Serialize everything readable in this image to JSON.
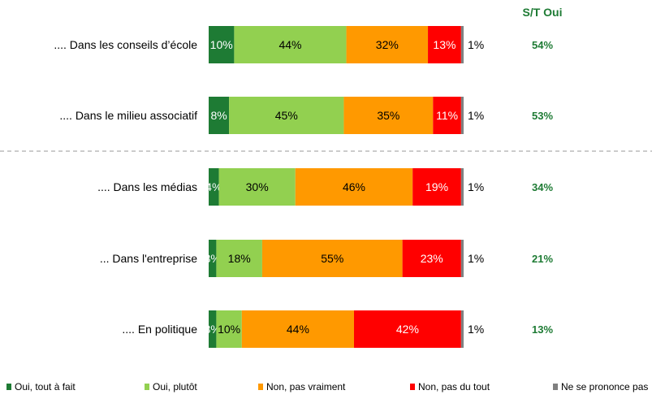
{
  "chart_data": {
    "type": "bar",
    "orientation": "horizontal-stacked-100",
    "st_title": "S/T Oui",
    "categories": [
      ".... Dans les conseils d’école",
      ".... Dans le milieu associatif",
      ".... Dans les médias",
      "... Dans l'entreprise",
      ".... En politique"
    ],
    "series": [
      {
        "name": "Oui, tout à fait",
        "color": "#1e7b34",
        "text_color": "#ffffff",
        "values": [
          10,
          8,
          4,
          3,
          3
        ]
      },
      {
        "name": "Oui, plutôt",
        "color": "#92d050",
        "text_color": "#000000",
        "values": [
          44,
          45,
          30,
          18,
          10
        ]
      },
      {
        "name": "Non, pas vraiment",
        "color": "#ff9900",
        "text_color": "#000000",
        "values": [
          32,
          35,
          46,
          55,
          44
        ]
      },
      {
        "name": "Non, pas du tout",
        "color": "#ff0000",
        "text_color": "#ffffff",
        "values": [
          13,
          11,
          19,
          23,
          42
        ]
      },
      {
        "name": "Ne se prononce pas",
        "color": "#808080",
        "text_color": "#000000",
        "values": [
          1,
          1,
          1,
          1,
          1
        ]
      }
    ],
    "st_oui": [
      "54%",
      "53%",
      "34%",
      "21%",
      "13%"
    ],
    "value_suffix": "%",
    "separator_after_index": 1,
    "legend_position": "bottom"
  }
}
